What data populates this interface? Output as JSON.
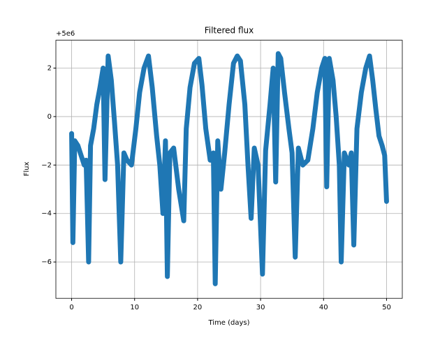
{
  "chart_data": {
    "type": "line",
    "title": "Filtered flux",
    "x_label": "Time (days)",
    "y_label": "Flux",
    "y_offset_text": "+5e6",
    "x": [
      0,
      0.2,
      0.5,
      1,
      1.5,
      2,
      2.3,
      2.7,
      3,
      3.5,
      4,
      4.5,
      5,
      5.3,
      5.8,
      6.3,
      6.8,
      7.3,
      7.8,
      8.3,
      8.8,
      9.5,
      10.2,
      10.8,
      11.5,
      12.2,
      12.8,
      13.5,
      14,
      14.5,
      14.9,
      15.2,
      15.6,
      16.2,
      17,
      17.8,
      18.2,
      18.8,
      19.5,
      20.2,
      20.7,
      21.3,
      22,
      22.5,
      22.8,
      23.2,
      23.7,
      24.3,
      25,
      25.7,
      26.3,
      26.8,
      27.5,
      28,
      28.5,
      29,
      29.6,
      30.3,
      30.8,
      31.5,
      32,
      32.4,
      32.8,
      33.2,
      33.8,
      34.5,
      35,
      35.5,
      36,
      36.7,
      37.5,
      38.3,
      39,
      39.7,
      40.2,
      40.5,
      40.9,
      41.5,
      42,
      42.5,
      42.8,
      43.3,
      44,
      44.4,
      44.8,
      45.3,
      46,
      46.7,
      47.3,
      47.8,
      48.3,
      48.8,
      49.3,
      49.7,
      50
    ],
    "series": [
      {
        "color": "#1f77b4",
        "values": [
          -0.7,
          -5.2,
          -1,
          -1.2,
          -1.6,
          -2,
          -1.8,
          -6,
          -1.2,
          -0.5,
          0.5,
          1.2,
          2,
          -2.6,
          2.5,
          1.5,
          -0.2,
          -2,
          -6,
          -1.5,
          -1.8,
          -2,
          -0.5,
          1,
          2,
          2.5,
          1.2,
          -0.8,
          -2,
          -4,
          -1,
          -6.6,
          -1.5,
          -1.3,
          -3,
          -4.3,
          -0.5,
          1.2,
          2.2,
          2.4,
          1.3,
          -0.5,
          -1.8,
          -1.5,
          -6.9,
          -1,
          -3,
          -1.5,
          0.5,
          2.2,
          2.5,
          2.3,
          0.5,
          -2,
          -4.2,
          -1.3,
          -2,
          -6.5,
          -1.4,
          0.5,
          2,
          -2.7,
          2.6,
          2.4,
          1,
          -0.5,
          -1.5,
          -5.8,
          -1.3,
          -2,
          -1.8,
          -0.5,
          1,
          2,
          2.4,
          -2.9,
          2.4,
          1.5,
          0,
          -2,
          -6,
          -1.5,
          -2,
          -1.5,
          -5.3,
          -0.5,
          1,
          2,
          2.5,
          1.5,
          0.3,
          -0.8,
          -1.2,
          -1.6,
          -3.5
        ]
      }
    ],
    "xlim": [
      -2.5,
      52.5
    ],
    "xticks": [
      0,
      10,
      20,
      30,
      40,
      50
    ],
    "ylim": [
      -7.5,
      3.15
    ],
    "yticks": [
      {
        "value": -6,
        "label": "−6"
      },
      {
        "value": -4,
        "label": "−4"
      },
      {
        "value": -2,
        "label": "−2"
      },
      0,
      2
    ],
    "grid": true
  }
}
